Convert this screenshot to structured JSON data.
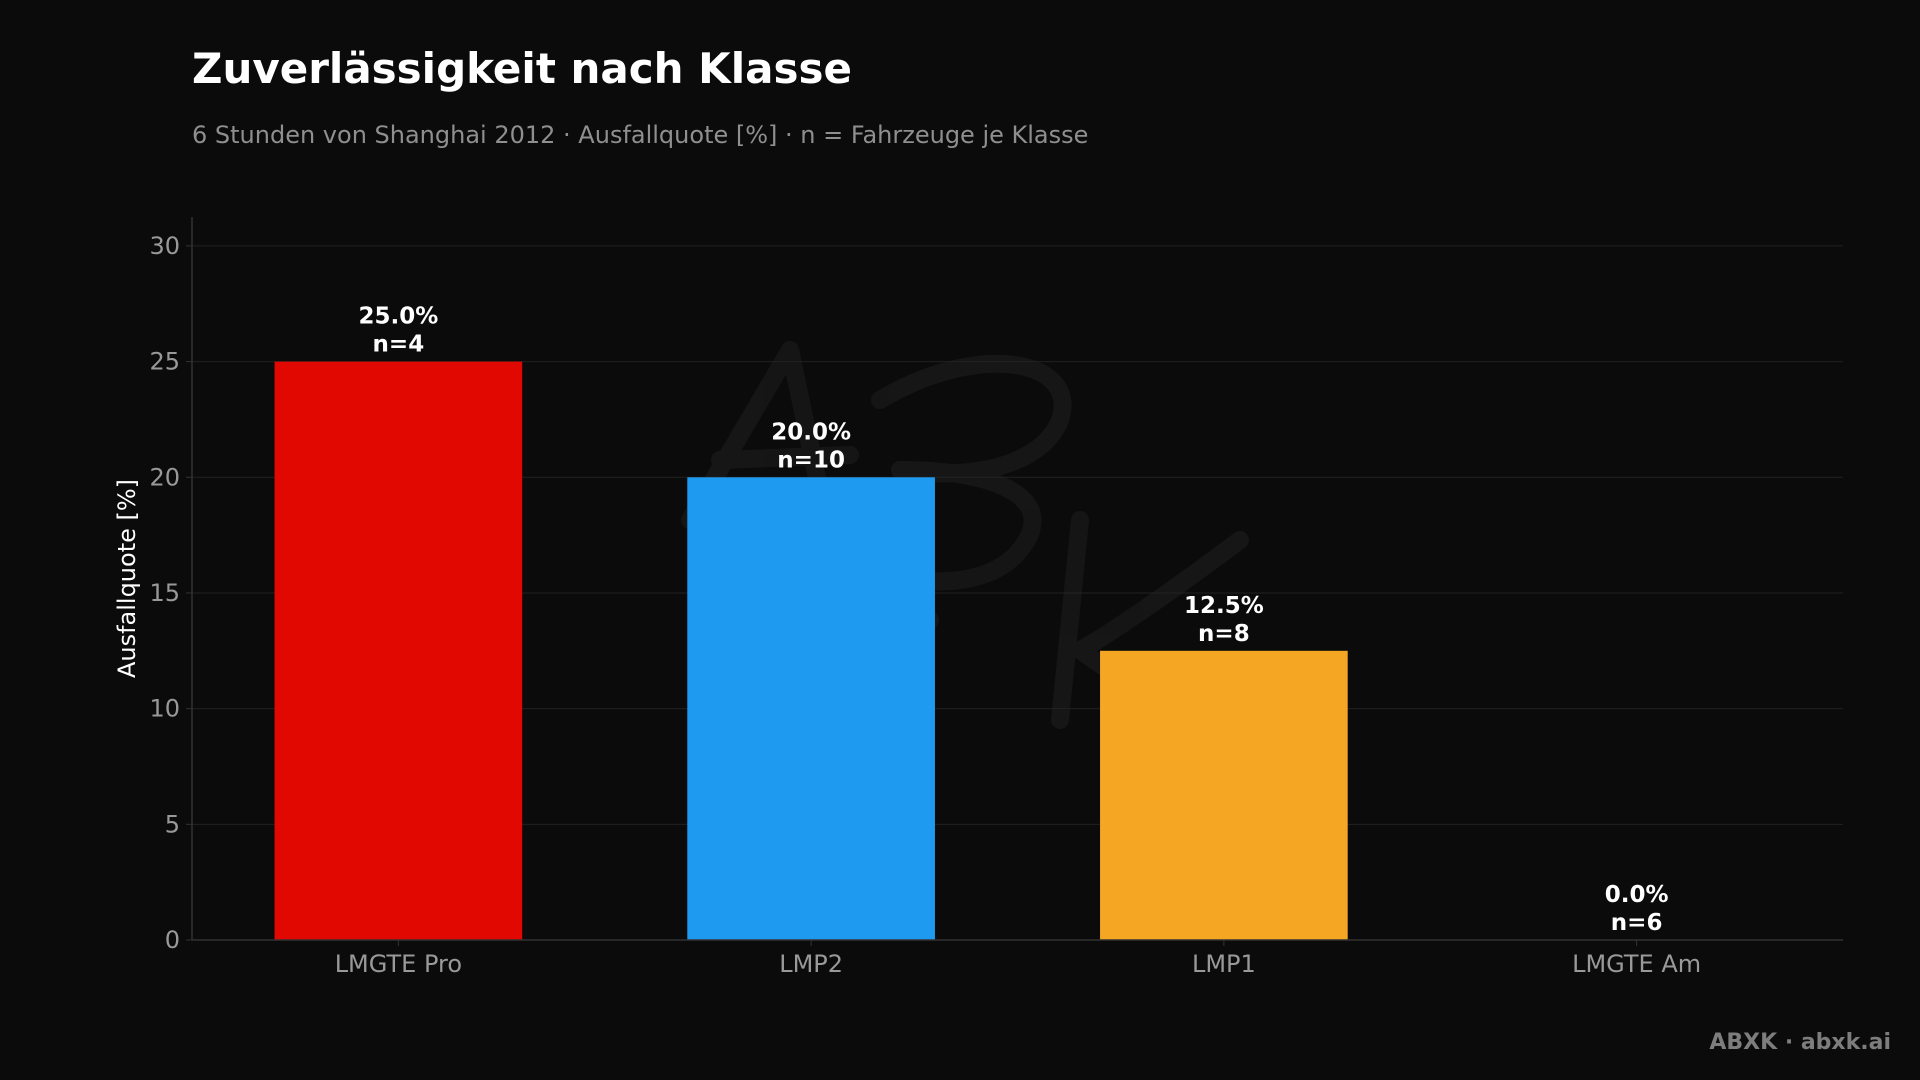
{
  "colors": {
    "background": "#0b0b0b",
    "grid": "#222222",
    "axis": "#333333",
    "tick_text": "#999999",
    "title": "#ffffff",
    "subtitle": "#8f8f8f",
    "credit": "#7d7d7d"
  },
  "chart_data": {
    "type": "bar",
    "title": "Zuverlässigkeit nach Klasse",
    "subtitle": "6 Stunden von Shanghai 2012 · Ausfallquote [%] · n = Fahrzeuge je Klasse",
    "xlabel": "",
    "ylabel": "Ausfallquote [%]",
    "ylim": [
      0,
      30
    ],
    "yticks": [
      0,
      5,
      10,
      15,
      20,
      25,
      30
    ],
    "grid": true,
    "categories": [
      "LMGTE Pro",
      "LMP2",
      "LMP1",
      "LMGTE Am"
    ],
    "values": [
      25.0,
      20.0,
      12.5,
      0.0
    ],
    "counts": [
      4,
      10,
      8,
      6
    ],
    "value_labels": [
      "25.0%",
      "20.0%",
      "12.5%",
      "0.0%"
    ],
    "count_labels": [
      "n=4",
      "n=10",
      "n=8",
      "n=6"
    ],
    "bar_colors": [
      "#e00800",
      "#1e9bf0",
      "#f5a623",
      "#8a8a8a"
    ]
  },
  "watermark": "ABXK",
  "credit": "ABXK · abxk.ai"
}
